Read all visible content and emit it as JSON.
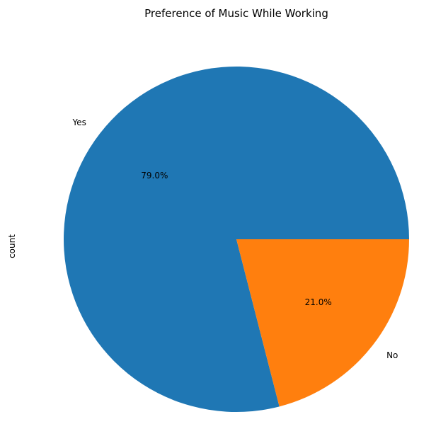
{
  "chart_data": {
    "type": "pie",
    "title": "Preference of Music While Working",
    "ylabel": "count",
    "categories": [
      "Yes",
      "No"
    ],
    "values": [
      79.0,
      21.0
    ],
    "value_labels": [
      "79.0%",
      "21.0%"
    ],
    "colors": [
      "#1f77b4",
      "#ff7f0e"
    ],
    "start_angle_deg": 0,
    "direction": "counterclockwise",
    "legend": "none"
  }
}
